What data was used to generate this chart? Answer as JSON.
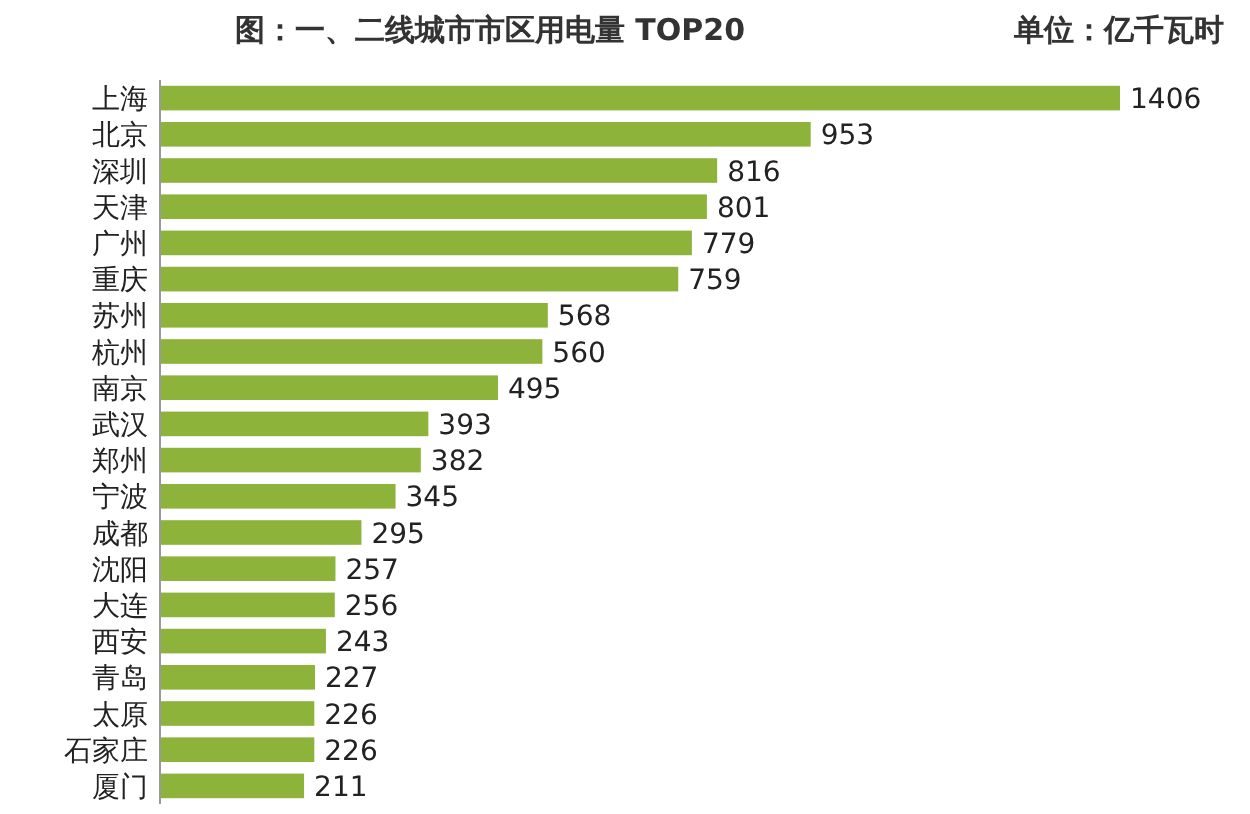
{
  "chart_data": {
    "type": "bar",
    "orientation": "horizontal",
    "title": "图：一、二线城市市区用电量 TOP20",
    "subtitle": "单位：亿千瓦时",
    "categories": [
      "上海",
      "北京",
      "深圳",
      "天津",
      "广州",
      "重庆",
      "苏州",
      "杭州",
      "南京",
      "武汉",
      "郑州",
      "宁波",
      "成都",
      "沈阳",
      "大连",
      "西安",
      "青岛",
      "太原",
      "石家庄",
      "厦门"
    ],
    "values": [
      1406,
      953,
      816,
      801,
      779,
      759,
      568,
      560,
      495,
      393,
      382,
      345,
      295,
      257,
      256,
      243,
      227,
      226,
      226,
      211
    ],
    "color": "#8db33a",
    "data_labels": true
  }
}
